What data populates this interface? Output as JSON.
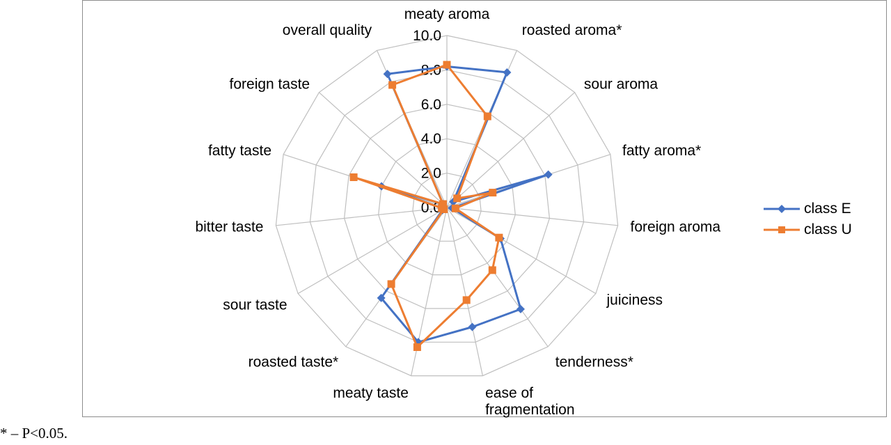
{
  "chart_data": {
    "type": "radar",
    "axes": [
      "meaty aroma",
      "roasted aroma*",
      "sour aroma",
      "fatty aroma*",
      "foreign aroma",
      "juiciness",
      "tenderness*",
      "ease of fragmentation",
      "meaty taste",
      "roasted taste*",
      "sour taste",
      "bitter taste",
      "fatty taste",
      "foreign taste",
      "overall quality"
    ],
    "ticks": [
      "0.0",
      "2.0",
      "4.0",
      "6.0",
      "8.0",
      "10.0"
    ],
    "range": [
      0,
      10
    ],
    "series": [
      {
        "name": "class E",
        "color": "#4472C4",
        "marker": "diamond",
        "values": [
          8.2,
          8.6,
          0.5,
          6.2,
          0.3,
          3.6,
          7.3,
          7.1,
          8.0,
          6.5,
          0.3,
          0.3,
          4.0,
          0.3,
          8.5
        ]
      },
      {
        "name": "class U",
        "color": "#ED7D31",
        "marker": "square",
        "values": [
          8.3,
          5.8,
          0.8,
          2.8,
          0.5,
          3.5,
          4.5,
          5.5,
          8.3,
          5.5,
          0.2,
          0.3,
          5.7,
          0.3,
          7.8
        ]
      }
    ],
    "grid": true,
    "legend_position": "right"
  },
  "footnote": "* – P<0.05."
}
